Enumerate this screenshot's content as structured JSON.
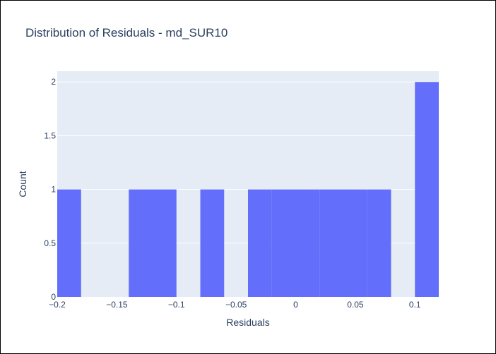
{
  "chart_data": {
    "type": "bar",
    "title": "Distribution of Residuals - md_SUR10",
    "xlabel": "Residuals",
    "ylabel": "Count",
    "xlim": [
      -0.2,
      0.12
    ],
    "ylim": [
      0,
      2.1
    ],
    "grid": true,
    "bin_width": 0.02,
    "bars": [
      {
        "start": -0.2,
        "end": -0.18,
        "count": 1
      },
      {
        "start": -0.18,
        "end": -0.16,
        "count": 0
      },
      {
        "start": -0.16,
        "end": -0.14,
        "count": 0
      },
      {
        "start": -0.14,
        "end": -0.12,
        "count": 1
      },
      {
        "start": -0.12,
        "end": -0.1,
        "count": 1
      },
      {
        "start": -0.1,
        "end": -0.08,
        "count": 0
      },
      {
        "start": -0.08,
        "end": -0.06,
        "count": 1
      },
      {
        "start": -0.06,
        "end": -0.04,
        "count": 0
      },
      {
        "start": -0.04,
        "end": -0.02,
        "count": 1
      },
      {
        "start": -0.02,
        "end": 0.0,
        "count": 1
      },
      {
        "start": 0.0,
        "end": 0.02,
        "count": 1
      },
      {
        "start": 0.02,
        "end": 0.04,
        "count": 1
      },
      {
        "start": 0.04,
        "end": 0.06,
        "count": 1
      },
      {
        "start": 0.06,
        "end": 0.08,
        "count": 1
      },
      {
        "start": 0.08,
        "end": 0.1,
        "count": 0
      },
      {
        "start": 0.1,
        "end": 0.12,
        "count": 2
      }
    ],
    "x_ticks": [
      {
        "value": -0.2,
        "label": "−0.2"
      },
      {
        "value": -0.15,
        "label": "−0.15"
      },
      {
        "value": -0.1,
        "label": "−0.1"
      },
      {
        "value": -0.05,
        "label": "−0.05"
      },
      {
        "value": 0,
        "label": "0"
      },
      {
        "value": 0.05,
        "label": "0.05"
      },
      {
        "value": 0.1,
        "label": "0.1"
      }
    ],
    "y_ticks": [
      {
        "value": 0,
        "label": "0"
      },
      {
        "value": 0.5,
        "label": "0.5"
      },
      {
        "value": 1,
        "label": "1"
      },
      {
        "value": 1.5,
        "label": "1.5"
      },
      {
        "value": 2,
        "label": "2"
      }
    ],
    "colors": {
      "bar": "#636efa",
      "plot_background": "#e5ecf6",
      "grid": "#ffffff",
      "text": "#2a3f5f"
    }
  }
}
